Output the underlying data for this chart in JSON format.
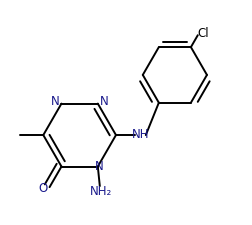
{
  "bg_color": "#ffffff",
  "line_color": "#000000",
  "text_color": "#1a1a8c",
  "label_fontsize": 8.5,
  "lw": 1.4,
  "figsize": [
    2.52,
    2.25
  ],
  "dpi": 100,
  "xlim": [
    0.0,
    1.0
  ],
  "ylim": [
    0.15,
    1.0
  ]
}
